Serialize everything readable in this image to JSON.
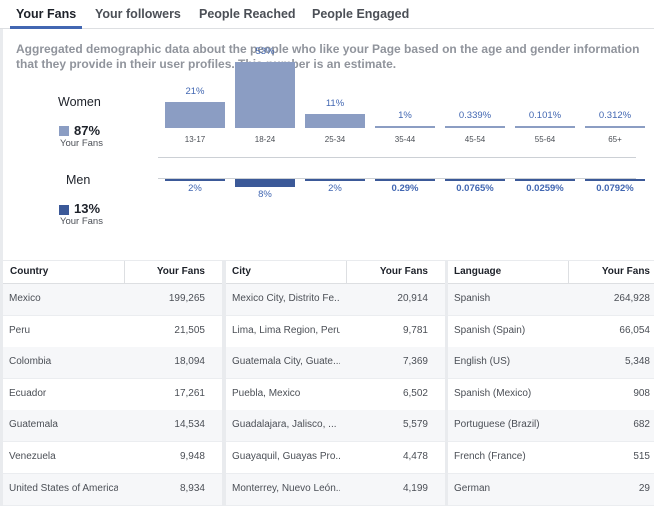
{
  "tabs": [
    "Your Fans",
    "Your followers",
    "People Reached",
    "People Engaged"
  ],
  "description": "Aggregated demographic data about the people who like your Page based on the age and gender information that they provide in their user profiles. This number is an estimate.",
  "women": {
    "title": "Women",
    "percent": "87%",
    "caption": "Your Fans",
    "color": "#8b9dc3"
  },
  "men": {
    "title": "Men",
    "percent": "13%",
    "caption": "Your Fans",
    "color": "#3b5998"
  },
  "chart_data": {
    "type": "bar",
    "categories": [
      "13-17",
      "18-24",
      "25-34",
      "35-44",
      "45-54",
      "55-64",
      "65+"
    ],
    "series": [
      {
        "name": "Women",
        "values": [
          21,
          53,
          11,
          1,
          0.339,
          0.101,
          0.312
        ],
        "labels": [
          "21%",
          "53%",
          "11%",
          "1%",
          "0.339%",
          "0.101%",
          "0.312%"
        ]
      },
      {
        "name": "Men",
        "values": [
          2,
          8,
          2,
          0.29,
          0.0765,
          0.0259,
          0.0792
        ],
        "labels": [
          "2%",
          "8%",
          "2%",
          "0.29%",
          "0.0765%",
          "0.0259%",
          "0.0792%"
        ]
      }
    ]
  },
  "tables": [
    {
      "headers": [
        "Country",
        "Your Fans"
      ],
      "rows": [
        [
          "Mexico",
          "199,265"
        ],
        [
          "Peru",
          "21,505"
        ],
        [
          "Colombia",
          "18,094"
        ],
        [
          "Ecuador",
          "17,261"
        ],
        [
          "Guatemala",
          "14,534"
        ],
        [
          "Venezuela",
          "9,948"
        ],
        [
          "United States of America",
          "8,934"
        ]
      ]
    },
    {
      "headers": [
        "City",
        "Your Fans"
      ],
      "rows": [
        [
          "Mexico City, Distrito Fe...",
          "20,914"
        ],
        [
          "Lima, Lima Region, Peru",
          "9,781"
        ],
        [
          "Guatemala City, Guate...",
          "7,369"
        ],
        [
          "Puebla, Mexico",
          "6,502"
        ],
        [
          "Guadalajara, Jalisco, ...",
          "5,579"
        ],
        [
          "Guayaquil, Guayas Pro...",
          "4,478"
        ],
        [
          "Monterrey, Nuevo León...",
          "4,199"
        ]
      ]
    },
    {
      "headers": [
        "Language",
        "Your Fans"
      ],
      "rows": [
        [
          "Spanish",
          "264,928"
        ],
        [
          "Spanish (Spain)",
          "66,054"
        ],
        [
          "English (US)",
          "5,348"
        ],
        [
          "Spanish (Mexico)",
          "908"
        ],
        [
          "Portuguese (Brazil)",
          "682"
        ],
        [
          "French (France)",
          "515"
        ],
        [
          "German",
          "29"
        ]
      ]
    }
  ]
}
